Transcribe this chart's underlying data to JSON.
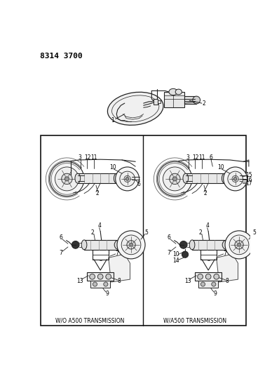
{
  "title_code": "8314 3700",
  "bg_color": "#ffffff",
  "border_color": "#000000",
  "text_color": "#000000",
  "fig_width": 3.98,
  "fig_height": 5.33,
  "dpi": 100,
  "left_box_label": "W/O A500 TRANSMISSION",
  "right_box_label": "W/A500 TRANSMISSION",
  "title_fontsize": 8,
  "label_fontsize": 5.5,
  "part_label_fontsize": 5.5,
  "draw_color": "#222222",
  "light_gray": "#cccccc",
  "mid_gray": "#888888"
}
